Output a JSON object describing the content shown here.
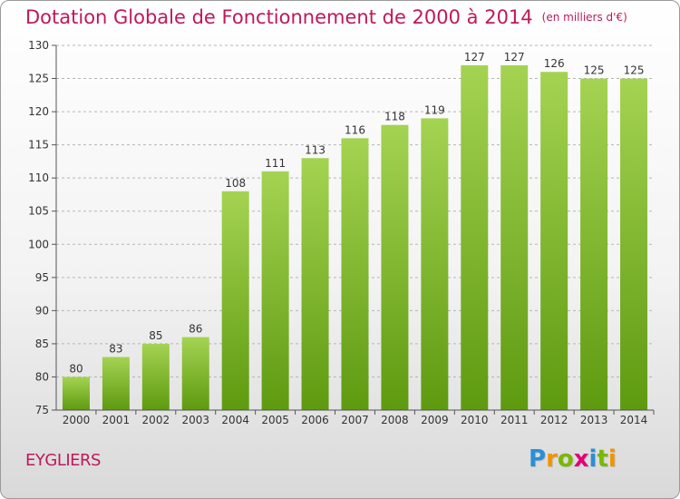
{
  "title": "Dotation Globale de Fonctionnement de 2000 à 2014",
  "unit_label": "(en milliers d'€)",
  "commune": "EYGLIERS",
  "logo": {
    "letters": [
      "P",
      "r",
      "o",
      "x",
      "i",
      "t",
      "i"
    ],
    "colors": [
      "#2a8fd6",
      "#f29400",
      "#7ab800",
      "#e2007a",
      "#2a8fd6",
      "#7ab800",
      "#f29400"
    ]
  },
  "colors": {
    "title": "#c0185a",
    "bar_top": "#a4d352",
    "bar_bottom": "#5e9a10"
  },
  "chart_data": {
    "type": "bar",
    "categories": [
      "2000",
      "2001",
      "2002",
      "2003",
      "2004",
      "2005",
      "2006",
      "2007",
      "2008",
      "2009",
      "2010",
      "2011",
      "2012",
      "2013",
      "2014"
    ],
    "values": [
      80,
      83,
      85,
      86,
      108,
      111,
      113,
      116,
      118,
      119,
      127,
      127,
      126,
      125,
      125
    ],
    "ylim": [
      75,
      130
    ],
    "yticks": [
      75,
      80,
      85,
      90,
      95,
      100,
      105,
      110,
      115,
      120,
      125,
      130
    ],
    "grid": true,
    "data_labels": true
  }
}
